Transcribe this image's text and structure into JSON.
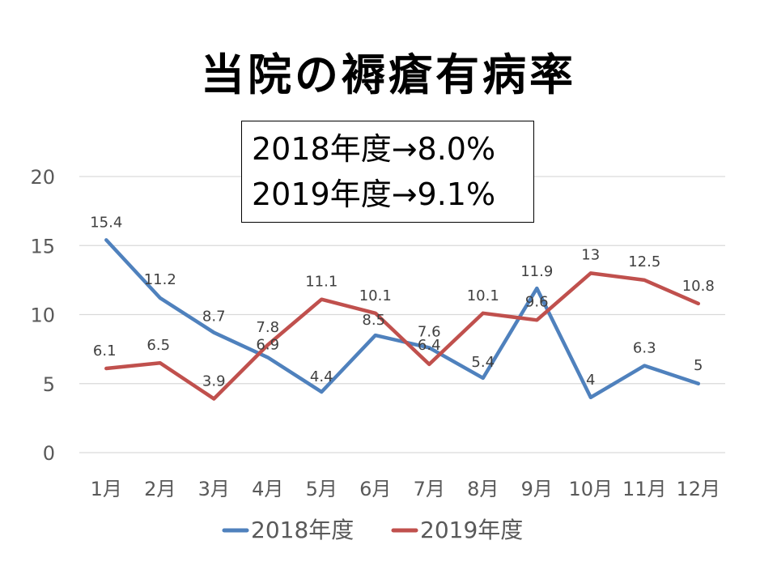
{
  "title": "当院の褥瘡有病率",
  "summary": {
    "lines": [
      "2018年度→8.0%",
      "2019年度→9.1%"
    ]
  },
  "colors": {
    "series_2018": "#4f81bd",
    "series_2019": "#c0504d",
    "grid": "#d9d9d9",
    "tick": "#595959",
    "label": "#404040"
  },
  "chart_data": {
    "type": "line",
    "title": "当院の褥瘡有病率",
    "xlabel": "",
    "ylabel": "",
    "categories": [
      "1月",
      "2月",
      "3月",
      "4月",
      "5月",
      "6月",
      "7月",
      "8月",
      "9月",
      "10月",
      "11月",
      "12月"
    ],
    "series": [
      {
        "name": "2018年度",
        "values": [
          15.4,
          11.2,
          8.7,
          6.9,
          4.4,
          8.5,
          7.6,
          5.4,
          11.9,
          4,
          6.3,
          5
        ]
      },
      {
        "name": "2019年度",
        "values": [
          6.1,
          6.5,
          3.9,
          7.8,
          11.1,
          10.1,
          6.4,
          10.1,
          9.6,
          13,
          12.5,
          10.8
        ]
      }
    ],
    "ylim": [
      0,
      20
    ],
    "yticks": [
      0,
      5,
      10,
      15,
      20
    ],
    "grid": true,
    "legend": "bottom"
  }
}
